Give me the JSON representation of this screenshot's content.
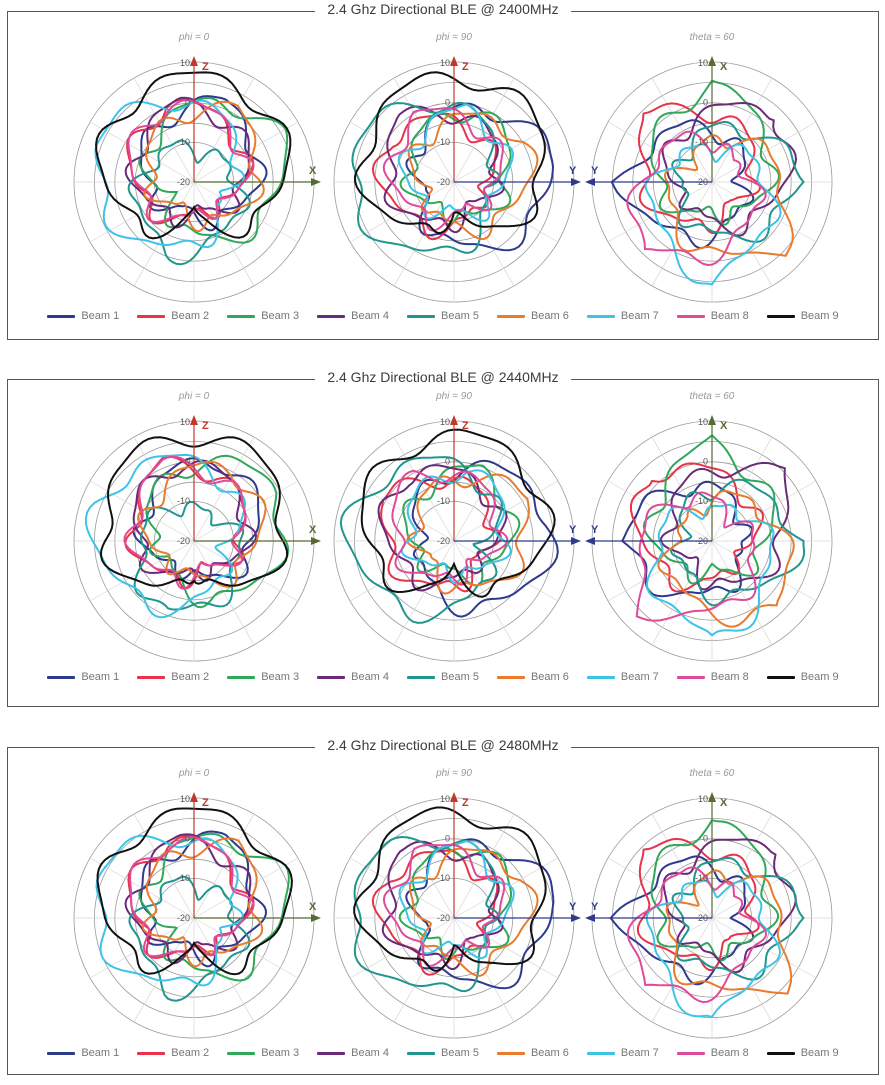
{
  "panels": [
    {
      "title": "2.4 Ghz Directional BLE @ 2400MHz",
      "subplots": [
        {
          "label": "phi = 0",
          "axis_label": "X",
          "axis_dir": "right",
          "type": "phi0"
        },
        {
          "label": "phi = 90",
          "axis_label": "Y",
          "axis_dir": "right",
          "type": "phi90"
        },
        {
          "label": "theta = 60",
          "axis_label": "Y",
          "axis_dir": "left",
          "type": "theta60"
        }
      ]
    },
    {
      "title": "2.4 Ghz Directional BLE @ 2440MHz",
      "subplots": [
        {
          "label": "phi = 0",
          "axis_label": "X",
          "axis_dir": "right",
          "type": "phi0"
        },
        {
          "label": "phi = 90",
          "axis_label": "Y",
          "axis_dir": "right",
          "type": "phi90"
        },
        {
          "label": "theta = 60",
          "axis_label": "Y",
          "axis_dir": "left",
          "type": "theta60"
        }
      ]
    },
    {
      "title": "2.4 Ghz Directional BLE @ 2480MHz",
      "subplots": [
        {
          "label": "phi = 0",
          "axis_label": "X",
          "axis_dir": "right",
          "type": "phi0"
        },
        {
          "label": "phi = 90",
          "axis_label": "Y",
          "axis_dir": "right",
          "type": "phi90"
        },
        {
          "label": "theta = 60",
          "axis_label": "Y",
          "axis_dir": "left",
          "type": "theta60"
        }
      ]
    }
  ],
  "chart_data": {
    "type": "polar",
    "radial_ticks": [
      "10",
      "0",
      "-10",
      "-20"
    ],
    "rlim": [
      -20,
      10
    ],
    "top_axis_label_phi": "Z",
    "top_axis_label_theta": "X",
    "grid": true,
    "legend_position": "bottom",
    "series": [
      {
        "name": "Beam 1",
        "color": "#2e3a8c"
      },
      {
        "name": "Beam 2",
        "color": "#e8334a"
      },
      {
        "name": "Beam 3",
        "color": "#2fa85a"
      },
      {
        "name": "Beam 4",
        "color": "#6a2a7a"
      },
      {
        "name": "Beam 5",
        "color": "#21968f"
      },
      {
        "name": "Beam 6",
        "color": "#e87b2c"
      },
      {
        "name": "Beam 7",
        "color": "#3ec3e8"
      },
      {
        "name": "Beam 8",
        "color": "#e04a9a"
      },
      {
        "name": "Beam 9",
        "color": "#111111"
      }
    ],
    "pattern_params": {
      "phi0": [
        {
          "dir": 20,
          "peak": -2,
          "w": 0.9
        },
        {
          "dir": 340,
          "peak": -3,
          "w": 0.9
        },
        {
          "dir": 60,
          "peak": 2,
          "w": 1.1
        },
        {
          "dir": 350,
          "peak": -4,
          "w": 1.0
        },
        {
          "dir": 200,
          "peak": -5,
          "w": 0.8
        },
        {
          "dir": 30,
          "peak": -3,
          "w": 0.9
        },
        {
          "dir": 290,
          "peak": 4,
          "w": 1.2
        },
        {
          "dir": 340,
          "peak": -3,
          "w": 0.9
        },
        {
          "dir": 0,
          "peak": 5,
          "w": 2.2
        }
      ],
      "phi90": [
        {
          "dir": 80,
          "peak": 3,
          "w": 1.1
        },
        {
          "dir": 300,
          "peak": -4,
          "w": 0.9
        },
        {
          "dir": 20,
          "peak": -5,
          "w": 0.8
        },
        {
          "dir": 320,
          "peak": -3,
          "w": 0.9
        },
        {
          "dir": 280,
          "peak": 5,
          "w": 1.2
        },
        {
          "dir": 60,
          "peak": -3,
          "w": 0.9
        },
        {
          "dir": 10,
          "peak": -6,
          "w": 0.8
        },
        {
          "dir": 330,
          "peak": -5,
          "w": 0.9
        },
        {
          "dir": 0,
          "peak": 5,
          "w": 2.2
        }
      ],
      "theta60": [
        {
          "dir": 270,
          "peak": 0,
          "w": 0.7
        },
        {
          "dir": 315,
          "peak": 1,
          "w": 0.7
        },
        {
          "dir": 0,
          "peak": 3,
          "w": 0.7
        },
        {
          "dir": 45,
          "peak": 2,
          "w": 0.7
        },
        {
          "dir": 90,
          "peak": 0,
          "w": 0.7
        },
        {
          "dir": 135,
          "peak": 2,
          "w": 0.7
        },
        {
          "dir": 180,
          "peak": 3,
          "w": 0.7
        },
        {
          "dir": 225,
          "peak": 2,
          "w": 0.7
        },
        {
          "dir": 0,
          "peak": -25,
          "w": 1.0
        }
      ]
    }
  }
}
